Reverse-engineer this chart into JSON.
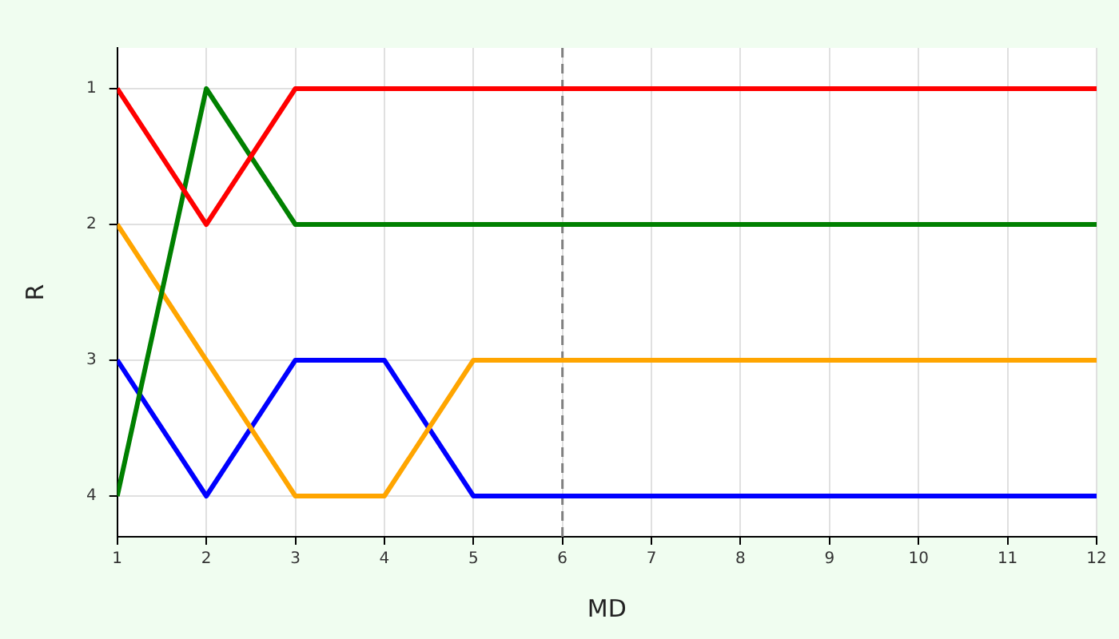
{
  "chart_data": {
    "type": "line",
    "xlabel": "MD",
    "ylabel": "R",
    "x": [
      1,
      2,
      3,
      4,
      5,
      6,
      7,
      8,
      9,
      10,
      11,
      12
    ],
    "series": [
      {
        "color": "#ff0000",
        "values": [
          1,
          2,
          1,
          1,
          1,
          1,
          1,
          1,
          1,
          1,
          1,
          1
        ]
      },
      {
        "color": "#008000",
        "values": [
          4,
          1,
          2,
          2,
          2,
          2,
          2,
          2,
          2,
          2,
          2,
          2
        ]
      },
      {
        "color": "#ffa500",
        "values": [
          2,
          3,
          4,
          4,
          3,
          3,
          3,
          3,
          3,
          3,
          3,
          3
        ]
      },
      {
        "color": "#0000ff",
        "values": [
          3,
          4,
          3,
          3,
          4,
          4,
          4,
          4,
          4,
          4,
          4,
          4
        ]
      }
    ],
    "xlim": [
      1,
      12
    ],
    "xticks": [
      1,
      2,
      3,
      4,
      5,
      6,
      7,
      8,
      9,
      10,
      11,
      12
    ],
    "ylim": [
      4.3,
      0.7
    ],
    "yticks": [
      1,
      2,
      3,
      4
    ],
    "ref_lines": [
      {
        "axis": "x",
        "value": 6,
        "color": "#808080",
        "line_style": "dashed"
      }
    ],
    "grid": true,
    "legend": false,
    "marker": "none",
    "line_style": "solid"
  }
}
